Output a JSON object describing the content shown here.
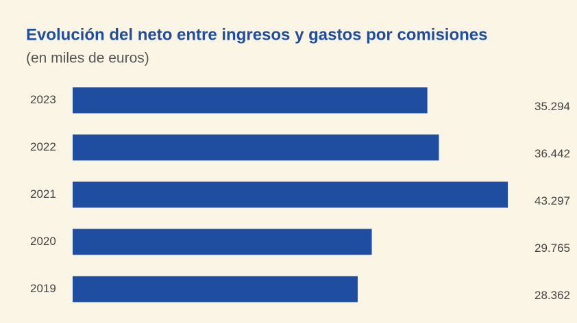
{
  "chart_data": {
    "type": "bar",
    "orientation": "horizontal",
    "title": "Evolución del neto entre ingresos y gastos por comisiones",
    "subtitle": "(en miles de euros)",
    "categories": [
      "2023",
      "2022",
      "2021",
      "2020",
      "2019"
    ],
    "values": [
      35294,
      36442,
      43297,
      29765,
      28362
    ],
    "value_labels": [
      "35.294",
      "36.442",
      "43.297",
      "29.765",
      "28.362"
    ],
    "color": "#1f4ea1"
  }
}
